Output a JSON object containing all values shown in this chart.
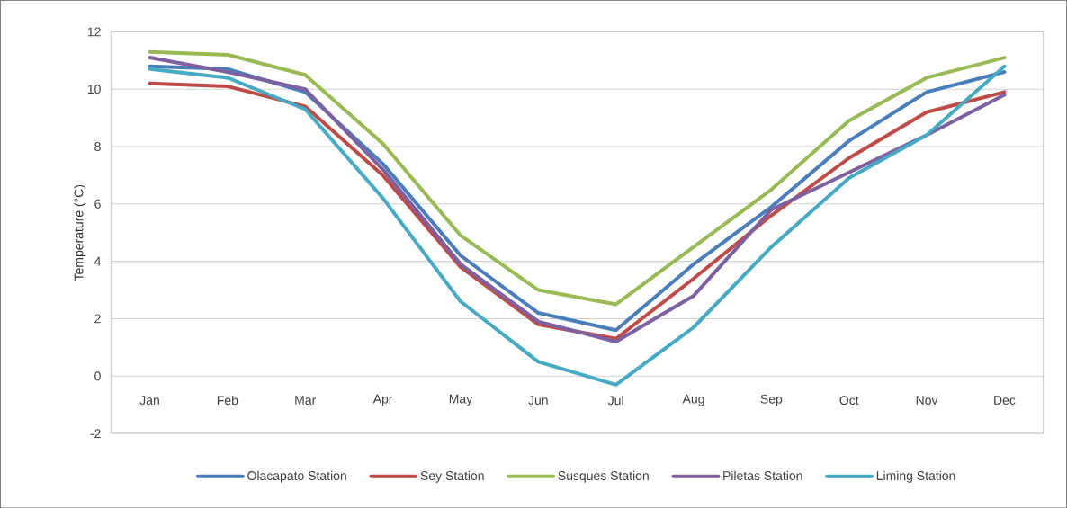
{
  "chart_data": {
    "type": "line",
    "ylabel": "Temperature (°C)",
    "categories": [
      "Jan",
      "Feb",
      "Mar",
      "Apr",
      "May",
      "Jun",
      "Jul",
      "Aug",
      "Sep",
      "Oct",
      "Nov",
      "Dec"
    ],
    "series": [
      {
        "name": "Olacapato Station",
        "color": "#4a7ebb",
        "values": [
          10.8,
          10.7,
          9.9,
          7.4,
          4.2,
          2.2,
          1.6,
          3.9,
          5.9,
          8.2,
          9.9,
          10.6
        ]
      },
      {
        "name": "Sey Station",
        "color": "#be4b48",
        "values": [
          10.2,
          10.1,
          9.4,
          7.0,
          3.8,
          1.8,
          1.3,
          3.4,
          5.6,
          7.6,
          9.2,
          9.9
        ]
      },
      {
        "name": "Susques Station",
        "color": "#98b954",
        "values": [
          11.3,
          11.2,
          10.5,
          8.1,
          4.9,
          3.0,
          2.5,
          4.5,
          6.5,
          8.9,
          10.4,
          11.1
        ]
      },
      {
        "name": "Piletas Station",
        "color": "#7d60a0",
        "values": [
          11.1,
          10.6,
          10.0,
          7.2,
          3.9,
          1.9,
          1.2,
          2.8,
          5.8,
          7.1,
          8.4,
          9.8
        ]
      },
      {
        "name": "Liming Station",
        "color": "#46aac5",
        "values": [
          10.7,
          10.4,
          9.3,
          6.2,
          2.6,
          0.5,
          -0.3,
          1.7,
          4.5,
          6.9,
          8.4,
          10.8
        ]
      }
    ],
    "ylim": [
      -2,
      12
    ],
    "yticks": [
      -2,
      0,
      2,
      4,
      6,
      8,
      10,
      12
    ],
    "grid": "y",
    "legend": "bottom"
  }
}
